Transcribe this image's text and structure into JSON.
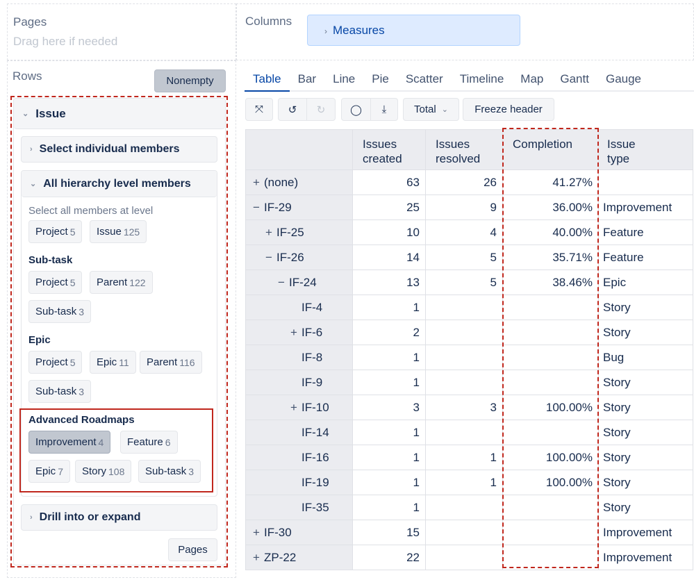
{
  "pages": {
    "label": "Pages",
    "hint": "Drag here if needed"
  },
  "columns": {
    "label": "Columns",
    "measures": "Measures"
  },
  "rows": {
    "label": "Rows",
    "nonempty": "Nonempty",
    "dimension": "Issue",
    "select_individual": "Select individual members",
    "all_hierarchy": "All hierarchy level members",
    "select_all_hint": "Select all members at level",
    "default_levels": [
      {
        "name": "Project",
        "count": "5"
      },
      {
        "name": "Issue",
        "count": "125"
      }
    ],
    "subtask": {
      "title": "Sub-task",
      "levels": [
        {
          "name": "Project",
          "count": "5"
        },
        {
          "name": "Parent",
          "count": "122"
        },
        {
          "name": "Sub-task",
          "count": "3"
        }
      ]
    },
    "epic": {
      "title": "Epic",
      "levels": [
        {
          "name": "Project",
          "count": "5"
        },
        {
          "name": "Epic",
          "count": "11"
        },
        {
          "name": "Parent",
          "count": "116"
        },
        {
          "name": "Sub-task",
          "count": "3"
        }
      ]
    },
    "roadmaps": {
      "title": "Advanced Roadmaps",
      "levels": [
        {
          "name": "Improvement",
          "count": "4"
        },
        {
          "name": "Feature",
          "count": "6"
        },
        {
          "name": "Epic",
          "count": "7"
        },
        {
          "name": "Story",
          "count": "108"
        },
        {
          "name": "Sub-task",
          "count": "3"
        }
      ]
    },
    "drill": "Drill into or expand",
    "pages_button": "Pages"
  },
  "tabs": [
    "Table",
    "Bar",
    "Line",
    "Pie",
    "Scatter",
    "Timeline",
    "Map",
    "Gantt",
    "Gauge"
  ],
  "active_tab": "Table",
  "toolbar": {
    "total": "Total",
    "freeze": "Freeze header"
  },
  "table": {
    "headers": [
      "",
      "Issues created",
      "Issues resolved",
      "Completion",
      "Issue type"
    ],
    "rows": [
      {
        "sign": "+",
        "level": 0,
        "name": "(none)",
        "created": "63",
        "resolved": "26",
        "completion": "41.27%",
        "type": ""
      },
      {
        "sign": "−",
        "level": 0,
        "name": "IF-29",
        "created": "25",
        "resolved": "9",
        "completion": "36.00%",
        "type": "Improvement"
      },
      {
        "sign": "+",
        "level": 1,
        "name": "IF-25",
        "created": "10",
        "resolved": "4",
        "completion": "40.00%",
        "type": "Feature"
      },
      {
        "sign": "−",
        "level": 1,
        "name": "IF-26",
        "created": "14",
        "resolved": "5",
        "completion": "35.71%",
        "type": "Feature"
      },
      {
        "sign": "−",
        "level": 2,
        "name": "IF-24",
        "created": "13",
        "resolved": "5",
        "completion": "38.46%",
        "type": "Epic"
      },
      {
        "sign": "",
        "level": 3,
        "name": "IF-4",
        "created": "1",
        "resolved": "",
        "completion": "",
        "type": "Story"
      },
      {
        "sign": "+",
        "level": 3,
        "name": "IF-6",
        "created": "2",
        "resolved": "",
        "completion": "",
        "type": "Story"
      },
      {
        "sign": "",
        "level": 3,
        "name": "IF-8",
        "created": "1",
        "resolved": "",
        "completion": "",
        "type": "Bug"
      },
      {
        "sign": "",
        "level": 3,
        "name": "IF-9",
        "created": "1",
        "resolved": "",
        "completion": "",
        "type": "Story"
      },
      {
        "sign": "+",
        "level": 3,
        "name": "IF-10",
        "created": "3",
        "resolved": "3",
        "completion": "100.00%",
        "type": "Story"
      },
      {
        "sign": "",
        "level": 3,
        "name": "IF-14",
        "created": "1",
        "resolved": "",
        "completion": "",
        "type": "Story"
      },
      {
        "sign": "",
        "level": 3,
        "name": "IF-16",
        "created": "1",
        "resolved": "1",
        "completion": "100.00%",
        "type": "Story"
      },
      {
        "sign": "",
        "level": 3,
        "name": "IF-19",
        "created": "1",
        "resolved": "1",
        "completion": "100.00%",
        "type": "Story"
      },
      {
        "sign": "",
        "level": 3,
        "name": "IF-35",
        "created": "1",
        "resolved": "",
        "completion": "",
        "type": "Story"
      },
      {
        "sign": "+",
        "level": 0,
        "name": "IF-30",
        "created": "15",
        "resolved": "",
        "completion": "",
        "type": "Improvement"
      },
      {
        "sign": "+",
        "level": 0,
        "name": "ZP-22",
        "created": "22",
        "resolved": "",
        "completion": "",
        "type": "Improvement"
      }
    ]
  },
  "colors": {
    "accent": "#0747a6",
    "highlight": "#c0271d",
    "measures_bg": "#deebff"
  }
}
